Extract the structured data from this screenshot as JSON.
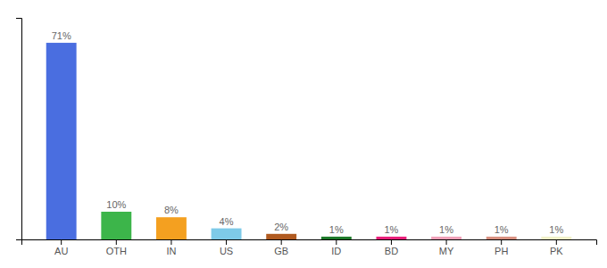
{
  "chart_data": {
    "type": "bar",
    "categories": [
      "AU",
      "OTH",
      "IN",
      "US",
      "GB",
      "ID",
      "BD",
      "MY",
      "PH",
      "PK"
    ],
    "values": [
      71,
      10,
      8,
      4,
      2,
      1,
      1,
      1,
      1,
      1
    ],
    "value_labels": [
      "71%",
      "10%",
      "8%",
      "4%",
      "2%",
      "1%",
      "1%",
      "1%",
      "1%",
      "1%"
    ],
    "colors": [
      "#4a6ee0",
      "#3cb54a",
      "#f4a020",
      "#7ecae8",
      "#b05a20",
      "#1e7a2a",
      "#e8207a",
      "#f0a0b8",
      "#d89080",
      "#f0f0c8"
    ],
    "ylim": [
      0,
      80
    ],
    "data_labels": true,
    "tick_labels": "x",
    "grid": false
  }
}
